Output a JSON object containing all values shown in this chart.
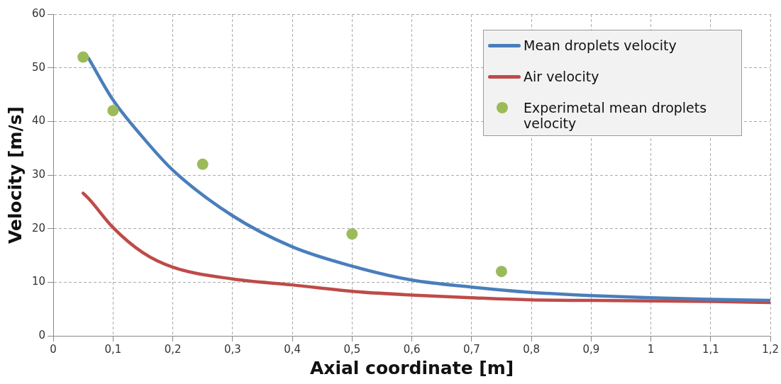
{
  "chart_data": {
    "type": "line",
    "xlabel": "Axial coordinate [m]",
    "ylabel": "Velocity [m/s]",
    "xlim": [
      0,
      1.2
    ],
    "ylim": [
      0,
      60
    ],
    "xticks": [
      0,
      {
        "value": 0.1,
        "label": "0,1"
      },
      {
        "value": 0.2,
        "label": "0,2"
      },
      {
        "value": 0.3,
        "label": "0,3"
      },
      {
        "value": 0.4,
        "label": "0,4"
      },
      {
        "value": 0.5,
        "label": "0,5"
      },
      {
        "value": 0.6,
        "label": "0,6"
      },
      {
        "value": 0.7,
        "label": "0,7"
      },
      {
        "value": 0.8,
        "label": "0,8"
      },
      {
        "value": 0.9,
        "label": "0,9"
      },
      1,
      {
        "value": 1.1,
        "label": "1,1"
      },
      {
        "value": 1.2,
        "label": "1,2"
      }
    ],
    "yticks": [
      0,
      10,
      20,
      30,
      40,
      50,
      60
    ],
    "grid": true,
    "legend": "top right",
    "series": [
      {
        "name": "Mean droplets velocity",
        "color": "#4a7ebb",
        "x": [
          0.059,
          0.1,
          0.15,
          0.2,
          0.3,
          0.4,
          0.5,
          0.6,
          0.7,
          0.8,
          0.9,
          1.0,
          1.1,
          1.2
        ],
        "values": [
          51.8,
          44,
          37,
          30.9,
          22.4,
          16.6,
          13.0,
          10.4,
          9.1,
          8.1,
          7.5,
          7.1,
          6.8,
          6.6
        ]
      },
      {
        "name": "Air velocity",
        "color": "#be4b48",
        "x": [
          0.05,
          0.06,
          0.1,
          0.15,
          0.2,
          0.3,
          0.4,
          0.5,
          0.6,
          0.7,
          0.8,
          0.9,
          1.0,
          1.1,
          1.2
        ],
        "values": [
          26.6,
          25.5,
          20.2,
          15.5,
          12.8,
          10.6,
          9.5,
          8.3,
          7.6,
          7.1,
          6.7,
          6.6,
          6.5,
          6.4,
          6.2
        ]
      },
      {
        "name": "Experimetal mean droplets velocity",
        "type": "scatter",
        "color": "#9bbb59",
        "marker": "circle",
        "x": [
          0.05,
          0.1,
          0.25,
          0.5,
          0.75
        ],
        "values": [
          52,
          42,
          32,
          19,
          12
        ]
      }
    ]
  }
}
